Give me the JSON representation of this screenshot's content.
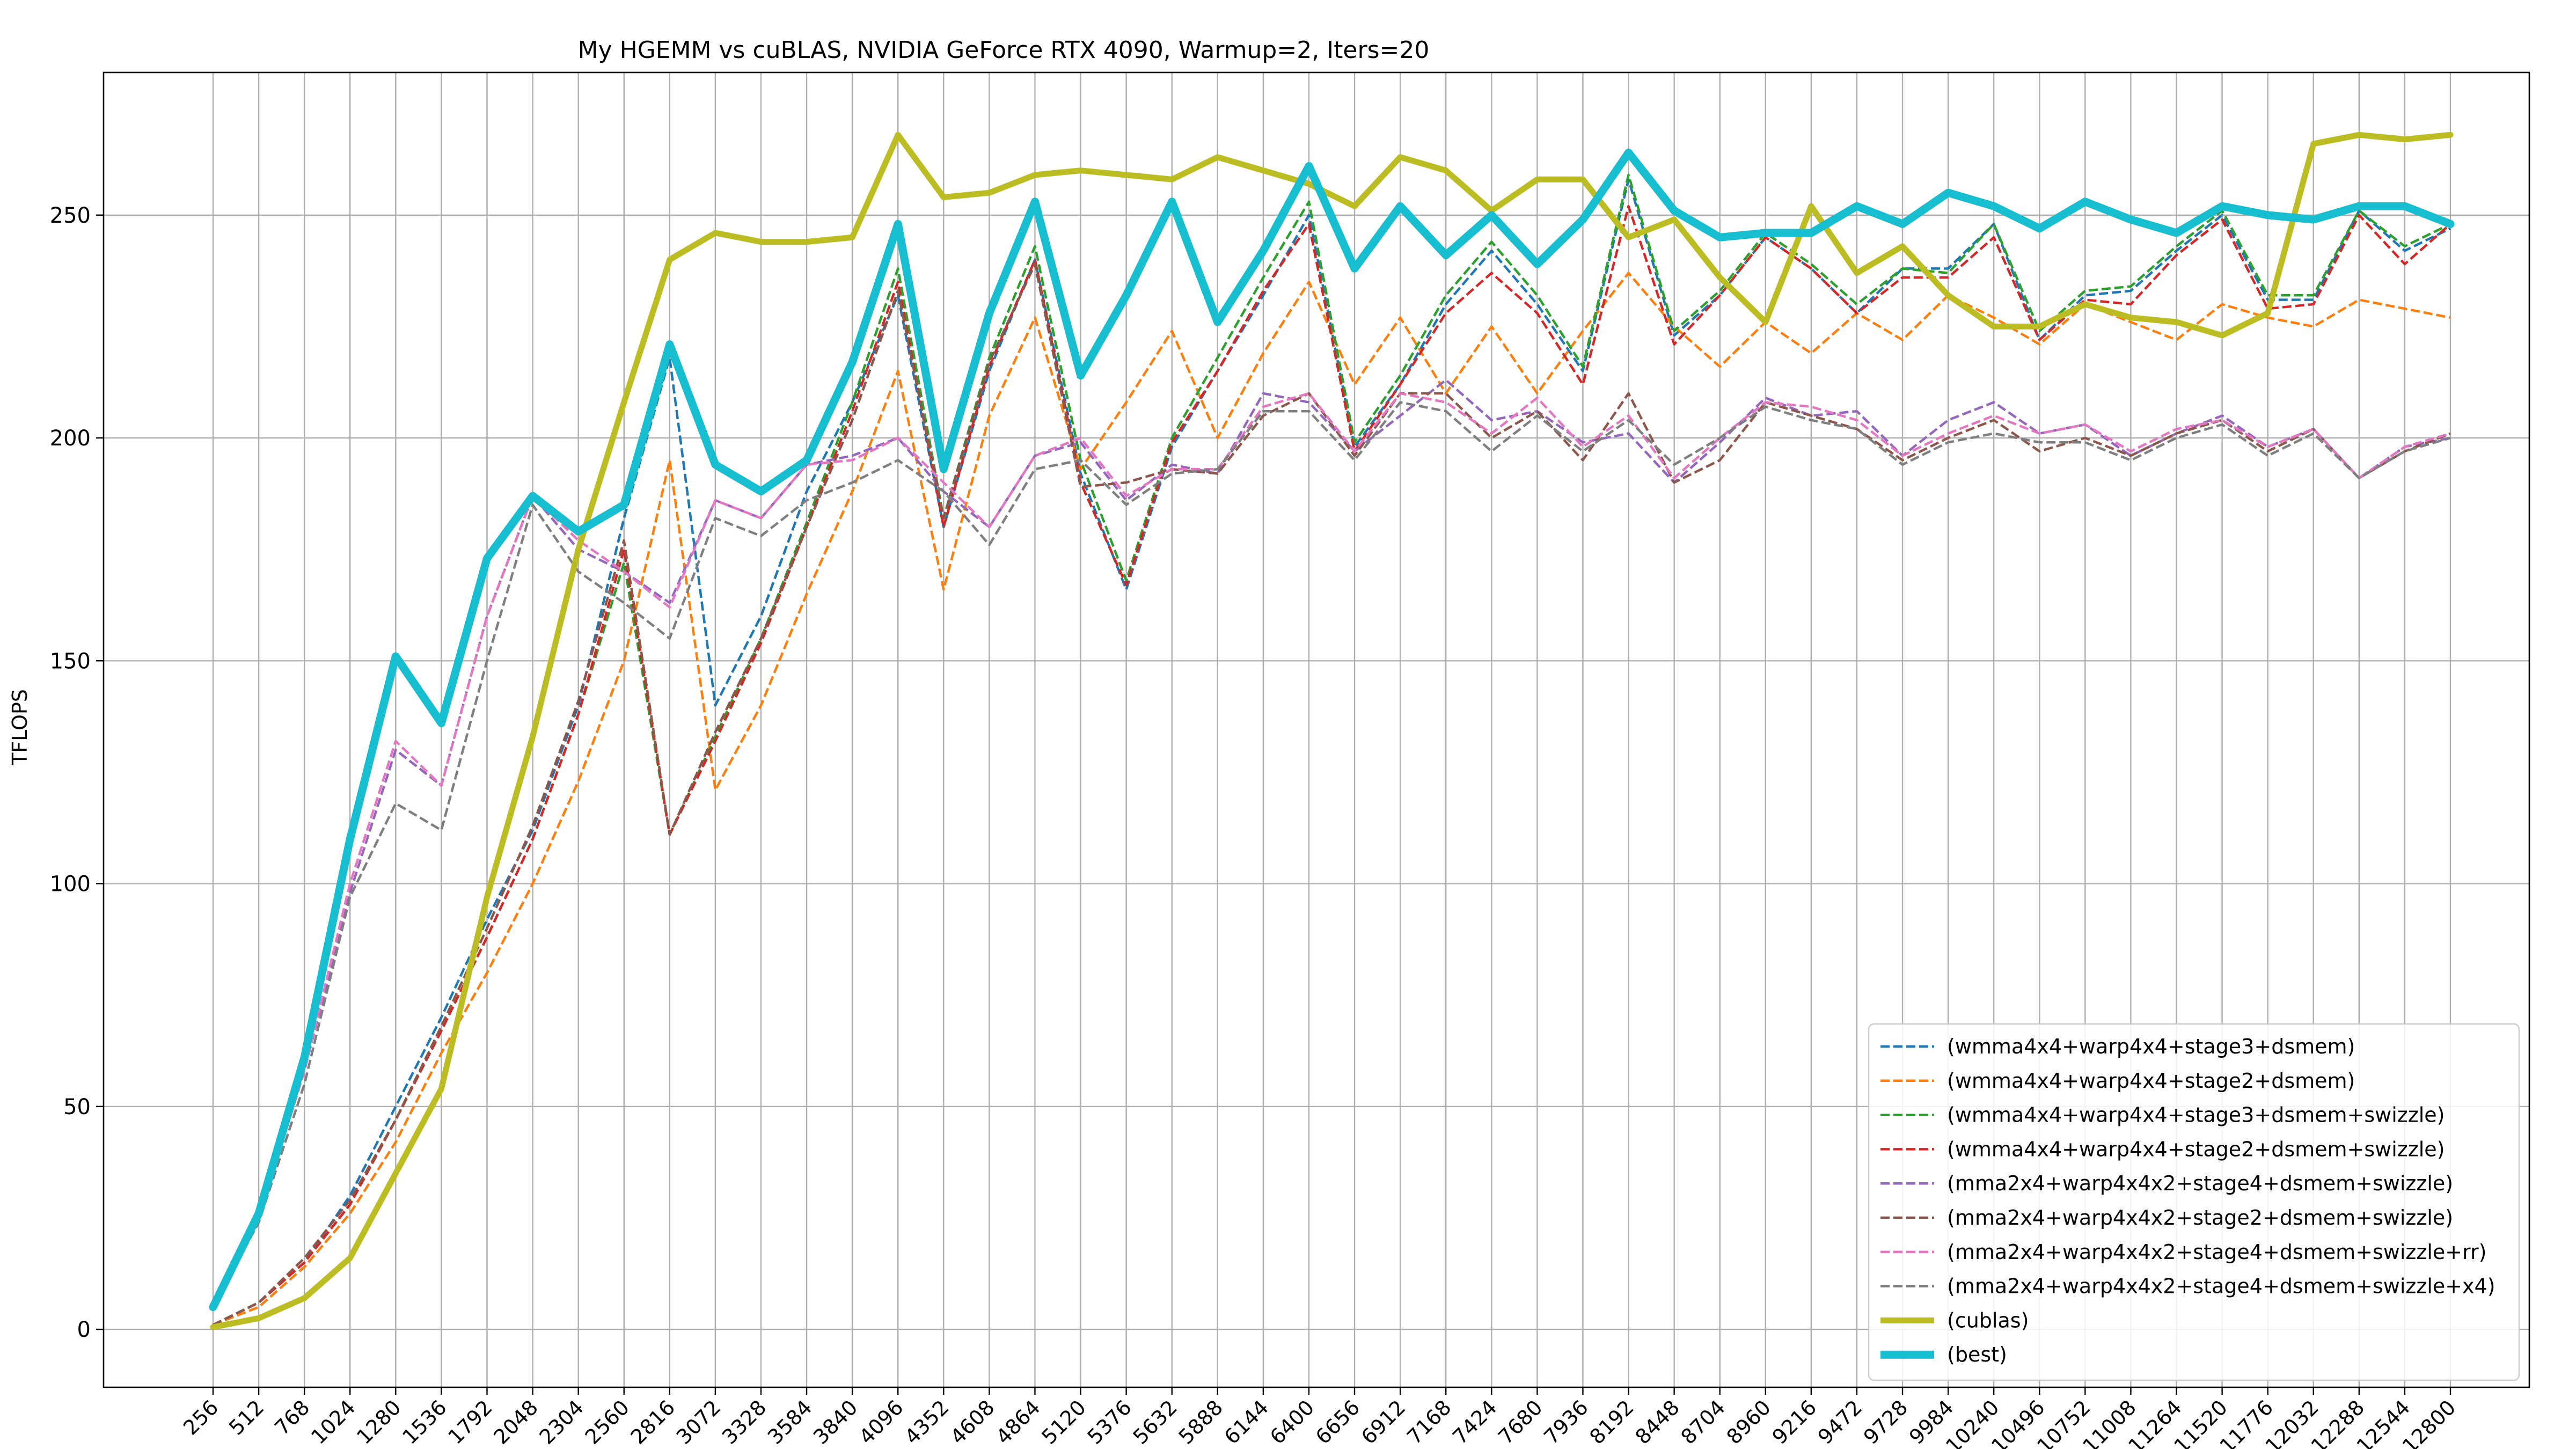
{
  "chart_data": {
    "type": "line",
    "title": "My HGEMM vs cuBLAS, NVIDIA GeForce RTX 4090, Warmup=2, Iters=20",
    "xlabel": "",
    "ylabel": "TFLOPS",
    "ylim": [
      -13,
      282
    ],
    "yticks": [
      0,
      50,
      100,
      150,
      200,
      250
    ],
    "grid": true,
    "legend_position": "bottom-right",
    "x": [
      256,
      512,
      768,
      1024,
      1280,
      1536,
      1792,
      2048,
      2304,
      2560,
      2816,
      3072,
      3328,
      3584,
      3840,
      4096,
      4352,
      4608,
      4864,
      5120,
      5376,
      5632,
      5888,
      6144,
      6400,
      6656,
      6912,
      7168,
      7424,
      7680,
      7936,
      8192,
      8448,
      8704,
      8960,
      9216,
      9472,
      9728,
      9984,
      10240,
      10496,
      10752,
      11008,
      11264,
      11520,
      11776,
      12032,
      12288,
      12544,
      12800
    ],
    "series": [
      {
        "name": "(wmma4x4+warp4x4+stage3+dsmem)",
        "color": "#1f77b4",
        "style": "dashed",
        "values": [
          1,
          6,
          15,
          30,
          50,
          70,
          92,
          112,
          140,
          182,
          218,
          140,
          160,
          188,
          208,
          232,
          180,
          215,
          240,
          192,
          166,
          198,
          215,
          232,
          250,
          198,
          212,
          230,
          242,
          230,
          215,
          258,
          223,
          232,
          245,
          238,
          228,
          238,
          238,
          248,
          222,
          232,
          233,
          242,
          250,
          231,
          231,
          251,
          242,
          247
        ]
      },
      {
        "name": "(wmma4x4+warp4x4+stage2+dsmem)",
        "color": "#ff7f0e",
        "style": "dashed",
        "values": [
          1,
          5,
          14,
          26,
          42,
          62,
          80,
          100,
          123,
          150,
          195,
          121,
          140,
          165,
          188,
          215,
          166,
          205,
          227,
          193,
          208,
          224,
          200,
          219,
          235,
          212,
          227,
          210,
          225,
          210,
          224,
          237,
          225,
          216,
          226,
          219,
          228,
          222,
          232,
          227,
          221,
          230,
          226,
          222,
          230,
          227,
          225,
          231,
          229,
          227
        ]
      },
      {
        "name": "(wmma4x4+warp4x4+stage3+dsmem+swizzle)",
        "color": "#2ca02c",
        "style": "dashed",
        "values": [
          1,
          6,
          15,
          28,
          47,
          67,
          88,
          110,
          138,
          172,
          111,
          133,
          155,
          181,
          208,
          238,
          182,
          218,
          243,
          195,
          168,
          200,
          218,
          236,
          253,
          199,
          214,
          232,
          244,
          232,
          216,
          259,
          224,
          233,
          246,
          239,
          230,
          238,
          237,
          248,
          224,
          233,
          234,
          243,
          251,
          232,
          232,
          251,
          243,
          248
        ]
      },
      {
        "name": "(wmma4x4+warp4x4+stage2+dsmem+swizzle)",
        "color": "#d62728",
        "style": "dashed",
        "values": [
          1,
          6,
          15,
          28,
          47,
          67,
          88,
          110,
          138,
          175,
          111,
          132,
          154,
          180,
          206,
          235,
          180,
          216,
          240,
          190,
          167,
          199,
          215,
          233,
          248,
          197,
          212,
          228,
          237,
          228,
          212,
          252,
          221,
          232,
          245,
          238,
          228,
          236,
          236,
          245,
          222,
          231,
          230,
          241,
          249,
          229,
          230,
          250,
          239,
          248
        ]
      },
      {
        "name": "(mma2x4+warp4x4x2+stage4+dsmem+swizzle)",
        "color": "#9467bd",
        "style": "dashed",
        "values": [
          5,
          25,
          58,
          98,
          130,
          122,
          160,
          187,
          175,
          170,
          163,
          186,
          182,
          194,
          196,
          200,
          188,
          180,
          196,
          199,
          186,
          194,
          192,
          210,
          208,
          197,
          205,
          213,
          204,
          206,
          199,
          201,
          190,
          199,
          209,
          205,
          206,
          196,
          204,
          208,
          201,
          203,
          196,
          201,
          205,
          198,
          202,
          191,
          198,
          200
        ]
      },
      {
        "name": "(mma2x4+warp4x4x2+stage2+dsmem+swizzle)",
        "color": "#8c564b",
        "style": "dashed",
        "values": [
          1,
          6,
          16,
          29,
          47,
          68,
          90,
          113,
          141,
          177,
          111,
          134,
          155,
          180,
          204,
          233,
          182,
          217,
          239,
          189,
          190,
          193,
          192,
          205,
          210,
          196,
          210,
          210,
          200,
          206,
          195,
          210,
          190,
          195,
          208,
          205,
          202,
          195,
          200,
          204,
          197,
          200,
          196,
          201,
          204,
          197,
          202,
          191,
          197,
          201
        ]
      },
      {
        "name": "(mma2x4+warp4x4x2+stage4+dsmem+swizzle+rr)",
        "color": "#e377c2",
        "style": "dashed",
        "values": [
          5,
          26,
          58,
          100,
          132,
          122,
          160,
          187,
          177,
          170,
          162,
          186,
          182,
          194,
          195,
          200,
          190,
          180,
          196,
          200,
          187,
          193,
          193,
          207,
          210,
          197,
          210,
          208,
          201,
          209,
          198,
          205,
          191,
          200,
          208,
          207,
          204,
          196,
          201,
          205,
          201,
          203,
          197,
          202,
          204,
          198,
          202,
          191,
          198,
          201
        ]
      },
      {
        "name": "(mma2x4+warp4x4x2+stage4+dsmem+swizzle+x4)",
        "color": "#7f7f7f",
        "style": "dashed",
        "values": [
          5,
          24,
          55,
          97,
          118,
          112,
          150,
          185,
          170,
          163,
          155,
          182,
          178,
          186,
          190,
          195,
          188,
          176,
          193,
          195,
          185,
          192,
          193,
          206,
          206,
          195,
          208,
          206,
          197,
          205,
          197,
          204,
          194,
          200,
          207,
          204,
          202,
          194,
          199,
          201,
          199,
          199,
          195,
          200,
          203,
          196,
          201,
          191,
          197,
          200
        ]
      },
      {
        "name": "(cublas)",
        "color": "#bcbd22",
        "style": "solid-thick",
        "values": [
          0.5,
          2.5,
          7,
          16,
          35,
          54,
          97,
          133,
          175,
          208,
          240,
          246,
          244,
          244,
          245,
          268,
          254,
          255,
          259,
          260,
          259,
          258,
          263,
          260,
          257,
          252,
          263,
          260,
          251,
          258,
          258,
          245,
          249,
          236,
          226,
          252,
          237,
          243,
          232,
          225,
          225,
          230,
          227,
          226,
          223,
          228,
          266,
          268,
          267,
          268
        ]
      },
      {
        "name": "(best)",
        "color": "#17becf",
        "style": "solid-thicker",
        "values": [
          5,
          26,
          61,
          110,
          151,
          136,
          173,
          187,
          179,
          185,
          221,
          194,
          188,
          195,
          217,
          248,
          193,
          228,
          253,
          214,
          232,
          253,
          226,
          242,
          261,
          238,
          252,
          241,
          250,
          239,
          249,
          264,
          251,
          245,
          246,
          246,
          252,
          248,
          255,
          252,
          247,
          253,
          249,
          246,
          252,
          250,
          249,
          252,
          252,
          248
        ]
      }
    ]
  }
}
